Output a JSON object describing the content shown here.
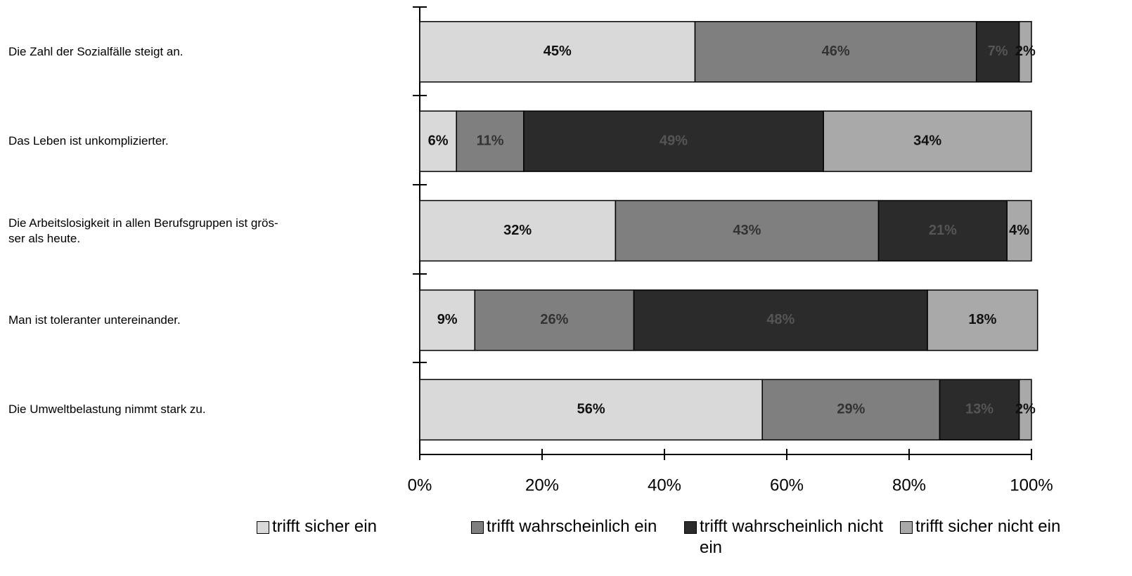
{
  "chart_data": {
    "type": "stacked_bar_horizontal",
    "categories": [
      "Die Zahl der Sozialfälle steigt an.",
      "Das Leben ist unkomplizierter.",
      "Die Arbeitslosigkeit in allen Berufsgruppen ist grös-\nser als heute.",
      "Man ist  toleranter untereinander.",
      "Die Umweltbelastung nimmt stark zu."
    ],
    "series": [
      {
        "name": "trifft sicher ein",
        "color": "#d9d9d9",
        "values": [
          45,
          6,
          32,
          9,
          56
        ],
        "value_labels": [
          "45%",
          "6%",
          "32%",
          "9%",
          "56%"
        ]
      },
      {
        "name": "trifft wahrscheinlich ein",
        "color": "#7f7f7f",
        "values": [
          46,
          11,
          43,
          26,
          29
        ],
        "value_labels": [
          "46%",
          "11%",
          "43%",
          "26%",
          "29%"
        ]
      },
      {
        "name": "trifft wahrscheinlich nicht ein",
        "color": "#2b2b2b",
        "values": [
          7,
          49,
          21,
          48,
          13
        ],
        "value_labels": [
          "7%",
          "49%",
          "21%",
          "48%",
          "13%"
        ]
      },
      {
        "name": "trifft sicher nicht ein",
        "color": "#a9a9a9",
        "values": [
          2,
          34,
          4,
          18,
          2
        ],
        "value_labels": [
          "2%",
          "34%",
          "4%",
          "18%",
          "2%"
        ]
      }
    ],
    "xlim": [
      0,
      100
    ],
    "xticks": [
      {
        "value": 0,
        "label": "0%"
      },
      {
        "value": 20,
        "label": "20%"
      },
      {
        "value": 40,
        "label": "40%"
      },
      {
        "value": 60,
        "label": "60%"
      },
      {
        "value": 80,
        "label": "80%"
      },
      {
        "value": 100,
        "label": "100%"
      }
    ]
  }
}
